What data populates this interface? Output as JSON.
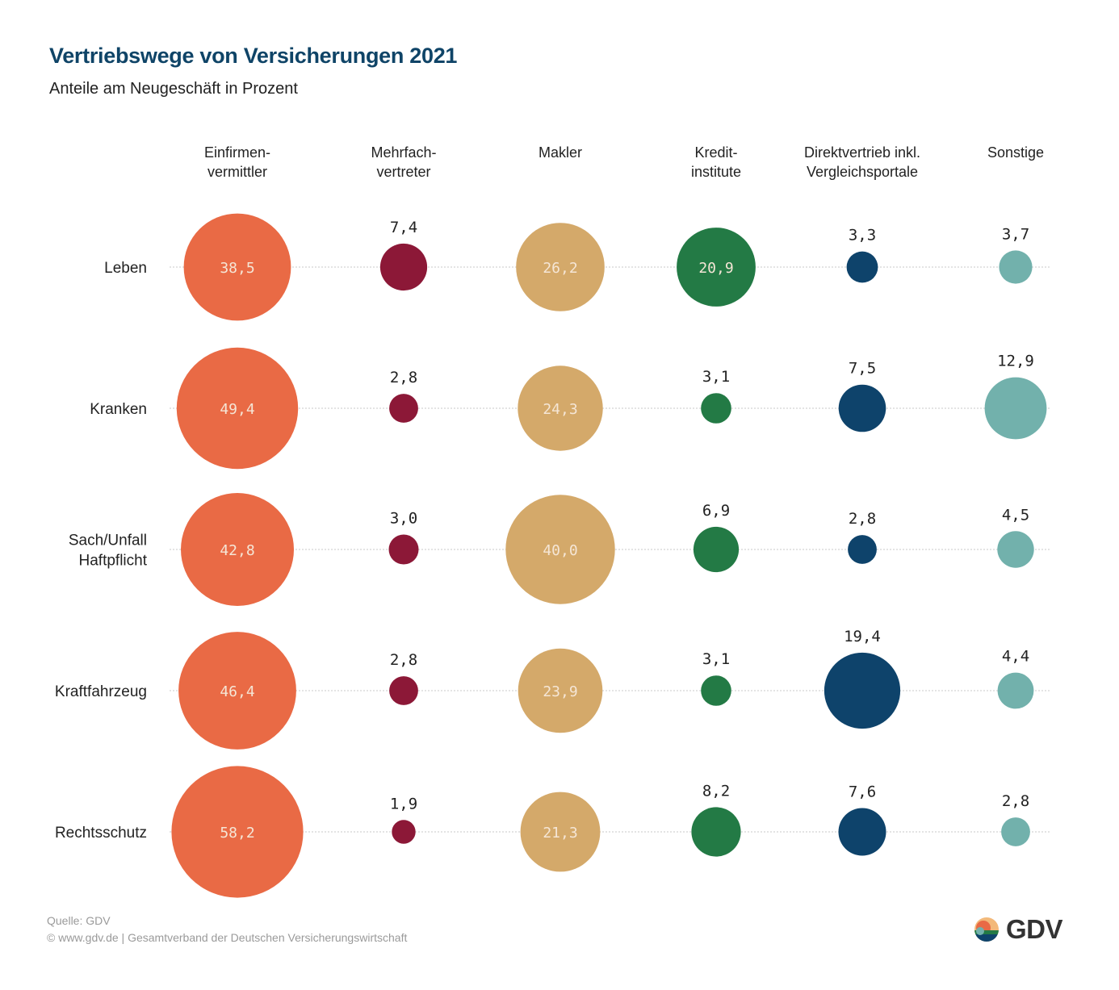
{
  "header": {
    "title": "Vertriebswege von Versicherungen 2021",
    "subtitle": "Anteile am Neugeschäft in Prozent"
  },
  "chart_data": {
    "type": "bubble-matrix",
    "title": "Vertriebswege von Versicherungen 2021",
    "subtitle": "Anteile am Neugeschäft in Prozent",
    "unit": "percent",
    "decimal_separator": ",",
    "columns": [
      {
        "name": "Einfirmenvermittler",
        "label_lines": [
          "Einfirmen-",
          "vermittler"
        ],
        "color": "#e96a45",
        "label_inside": true
      },
      {
        "name": "Mehrfachvertreter",
        "label_lines": [
          "Mehrfach-",
          "vertreter"
        ],
        "color": "#8c1837",
        "label_inside": false
      },
      {
        "name": "Makler",
        "label_lines": [
          "Makler"
        ],
        "color": "#d4a96a",
        "label_inside": true
      },
      {
        "name": "Kreditinstitute",
        "label_lines": [
          "Kredit-",
          "institute"
        ],
        "color": "#237a45",
        "label_inside": "auto"
      },
      {
        "name": "Direktvertrieb inkl. Vergleichsportale",
        "label_lines": [
          "Direktvertrieb inkl.",
          "Vergleichsportale"
        ],
        "color": "#0e436b",
        "label_inside": false
      },
      {
        "name": "Sonstige",
        "label_lines": [
          "Sonstige"
        ],
        "color": "#72b1ac",
        "label_inside": false
      }
    ],
    "rows": [
      {
        "name": "Leben",
        "label_lines": [
          "Leben"
        ],
        "values": [
          38.5,
          7.4,
          26.2,
          20.9,
          3.3,
          3.7
        ],
        "display": [
          "38,5",
          "7,4",
          "26,2",
          "20,9",
          "3,3",
          "3,7"
        ]
      },
      {
        "name": "Kranken",
        "label_lines": [
          "Kranken"
        ],
        "values": [
          49.4,
          2.8,
          24.3,
          3.1,
          7.5,
          12.9
        ],
        "display": [
          "49,4",
          "2,8",
          "24,3",
          "3,1",
          "7,5",
          "12,9"
        ]
      },
      {
        "name": "Sach/Unfall Haftpflicht",
        "label_lines": [
          "Sach/Unfall",
          "Haftpflicht"
        ],
        "values": [
          42.8,
          3.0,
          40.0,
          6.9,
          2.8,
          4.5
        ],
        "display": [
          "42,8",
          "3,0",
          "40,0",
          "6,9",
          "2,8",
          "4,5"
        ]
      },
      {
        "name": "Kraftfahrzeug",
        "label_lines": [
          "Kraftfahrzeug"
        ],
        "values": [
          46.4,
          2.8,
          23.9,
          3.1,
          19.4,
          4.4
        ],
        "display": [
          "46,4",
          "2,8",
          "23,9",
          "3,1",
          "19,4",
          "4,4"
        ]
      },
      {
        "name": "Rechtsschutz",
        "label_lines": [
          "Rechtsschutz"
        ],
        "values": [
          58.2,
          1.9,
          21.3,
          8.2,
          7.6,
          2.8
        ],
        "display": [
          "58,2",
          "1,9",
          "21,3",
          "8,2",
          "7,6",
          "2,8"
        ]
      }
    ],
    "size_encoding": "area proportional to value",
    "gridlines": "dotted horizontal per row"
  },
  "footer": {
    "source": "Quelle: GDV",
    "copyright": "©  www.gdv.de  |  Gesamtverband der Deutschen Versicherungswirtschaft"
  },
  "logo": {
    "text": "GDV",
    "colors": [
      "#f3b97a",
      "#e96a45",
      "#237a45",
      "#0e436b",
      "#72b1ac"
    ]
  }
}
